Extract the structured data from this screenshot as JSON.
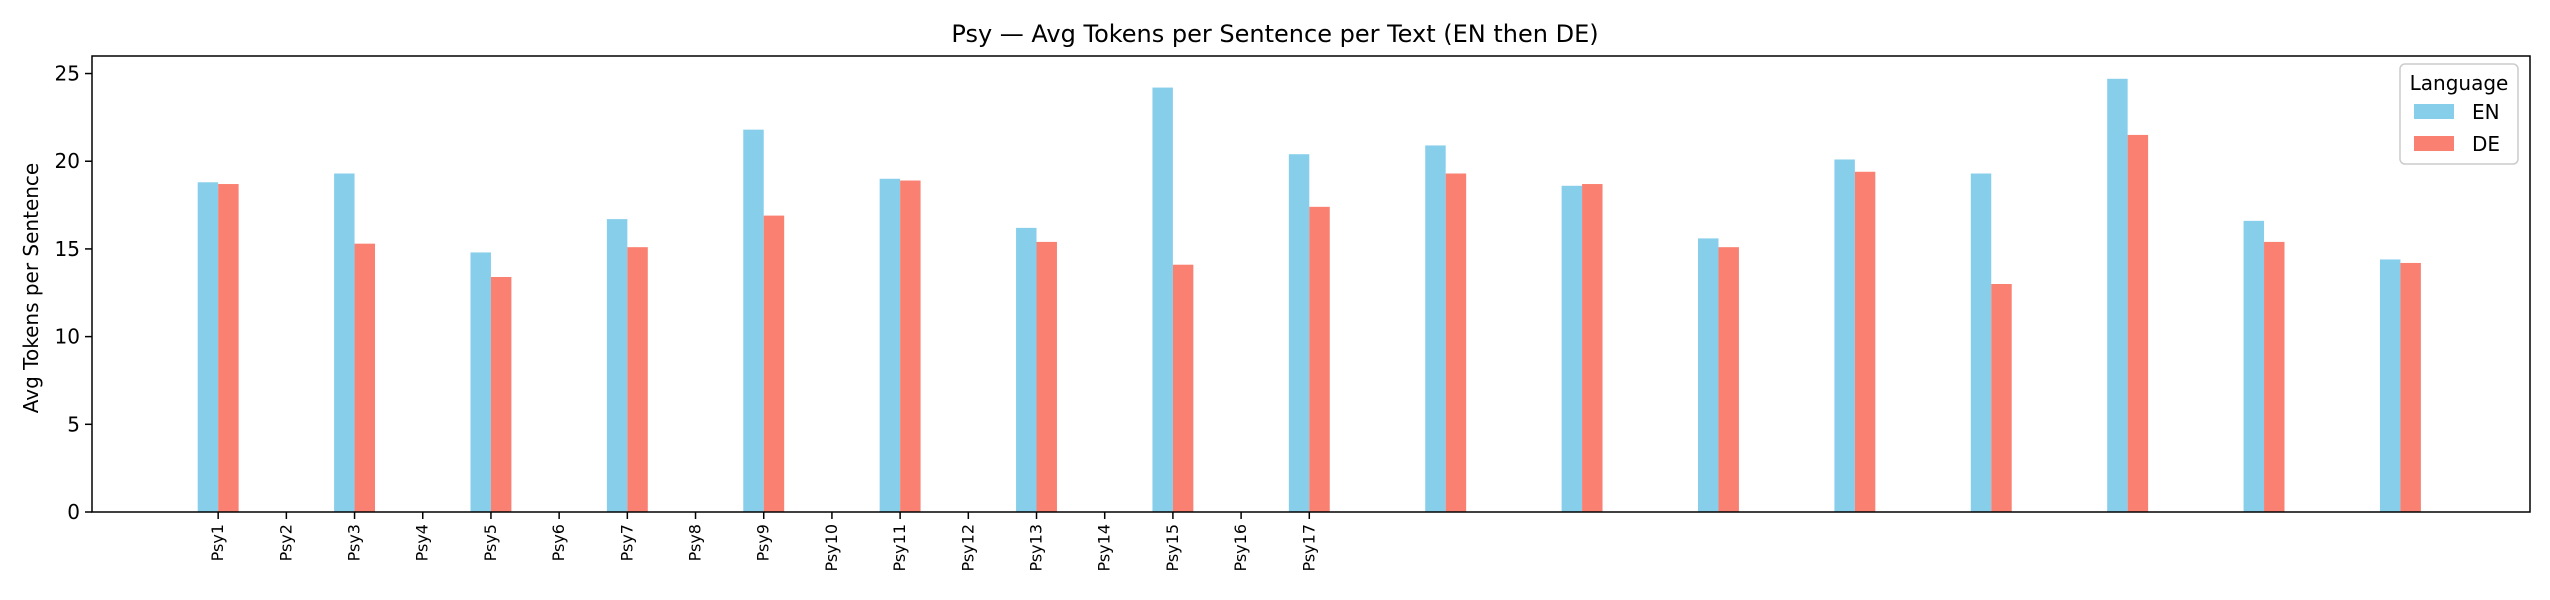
{
  "chart_data": {
    "type": "bar",
    "title": "Psy — Avg Tokens per Sentence per Text (EN then DE)",
    "xlabel": "",
    "ylabel": "Avg Tokens per Sentence",
    "ylim": [
      0,
      26
    ],
    "yticks": [
      0,
      5,
      10,
      15,
      20,
      25
    ],
    "tick_labels": [
      "Psy1",
      "Psy2",
      "Psy3",
      "Psy4",
      "Psy5",
      "Psy6",
      "Psy7",
      "Psy8",
      "Psy9",
      "Psy10",
      "Psy11",
      "Psy12",
      "Psy13",
      "Psy14",
      "Psy15",
      "Psy16",
      "Psy17"
    ],
    "series": [
      {
        "name": "EN",
        "color": "#87CEEB",
        "values": [
          18.8,
          19.3,
          14.8,
          16.7,
          21.8,
          19.0,
          16.2,
          24.2,
          20.4,
          20.9,
          18.6,
          15.6,
          20.1,
          19.3,
          24.7,
          16.6,
          14.4
        ]
      },
      {
        "name": "DE",
        "color": "#FA8072",
        "values": [
          18.7,
          15.3,
          13.4,
          15.1,
          16.9,
          18.9,
          15.4,
          14.1,
          17.4,
          19.3,
          18.7,
          15.1,
          19.4,
          13.0,
          21.5,
          15.4,
          14.2
        ]
      }
    ],
    "legend": {
      "title": "Language",
      "placement": "upper-right"
    },
    "grid": false
  }
}
